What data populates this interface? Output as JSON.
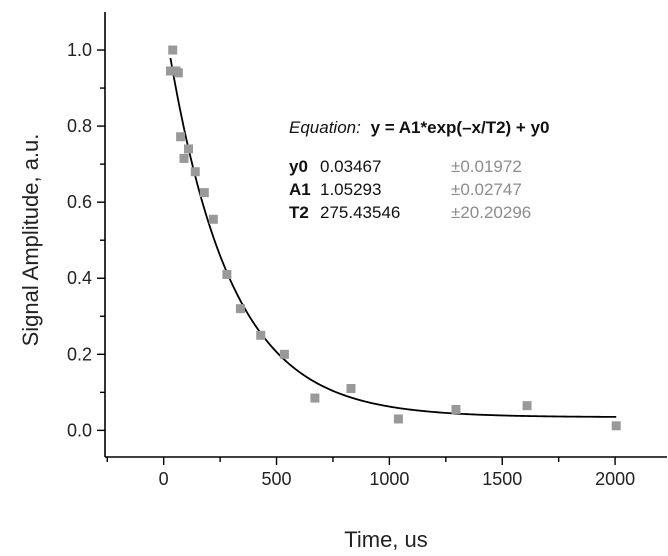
{
  "chart_data": {
    "type": "scatter",
    "xlabel": "Time, us",
    "ylabel": "Signal Amplitude, a.u.",
    "xlim": [
      -260,
      2230
    ],
    "ylim": [
      -0.07,
      1.1
    ],
    "x_ticks": [
      0,
      500,
      1000,
      1500,
      2000
    ],
    "x_tick_labels": [
      "0",
      "500",
      "1000",
      "1500",
      "2000"
    ],
    "y_ticks": [
      0.0,
      0.2,
      0.4,
      0.6,
      0.8,
      1.0
    ],
    "y_tick_labels": [
      "0.0",
      "0.2",
      "0.4",
      "0.6",
      "0.8",
      "1.0"
    ],
    "points": [
      {
        "x": 30,
        "y": 0.945
      },
      {
        "x": 40,
        "y": 1.0
      },
      {
        "x": 55,
        "y": 0.945
      },
      {
        "x": 65,
        "y": 0.94
      },
      {
        "x": 75,
        "y": 0.772
      },
      {
        "x": 90,
        "y": 0.715
      },
      {
        "x": 110,
        "y": 0.74
      },
      {
        "x": 140,
        "y": 0.68
      },
      {
        "x": 180,
        "y": 0.625
      },
      {
        "x": 220,
        "y": 0.555
      },
      {
        "x": 280,
        "y": 0.41
      },
      {
        "x": 340,
        "y": 0.32
      },
      {
        "x": 430,
        "y": 0.25
      },
      {
        "x": 535,
        "y": 0.2
      },
      {
        "x": 670,
        "y": 0.085
      },
      {
        "x": 830,
        "y": 0.11
      },
      {
        "x": 1040,
        "y": 0.03
      },
      {
        "x": 1295,
        "y": 0.055
      },
      {
        "x": 1610,
        "y": 0.065
      },
      {
        "x": 2005,
        "y": 0.012
      }
    ],
    "fit": {
      "equation_label": "Equation:",
      "equation": "y = A1*exp(–x/T2) + y0",
      "x_range": [
        30,
        2005
      ],
      "params": [
        {
          "name": "y0",
          "value": "0.03467",
          "error": "±0.01972",
          "num": 0.03467
        },
        {
          "name": "A1",
          "value": "1.05293",
          "error": "±0.02747",
          "num": 1.05293
        },
        {
          "name": "T2",
          "value": "275.43546",
          "error": "±20.20296",
          "num": 275.43546
        }
      ]
    },
    "colors": {
      "points": "#999999",
      "fit_line": "#000000",
      "error_text": "#8c8c8c",
      "axis": "#000000"
    }
  }
}
